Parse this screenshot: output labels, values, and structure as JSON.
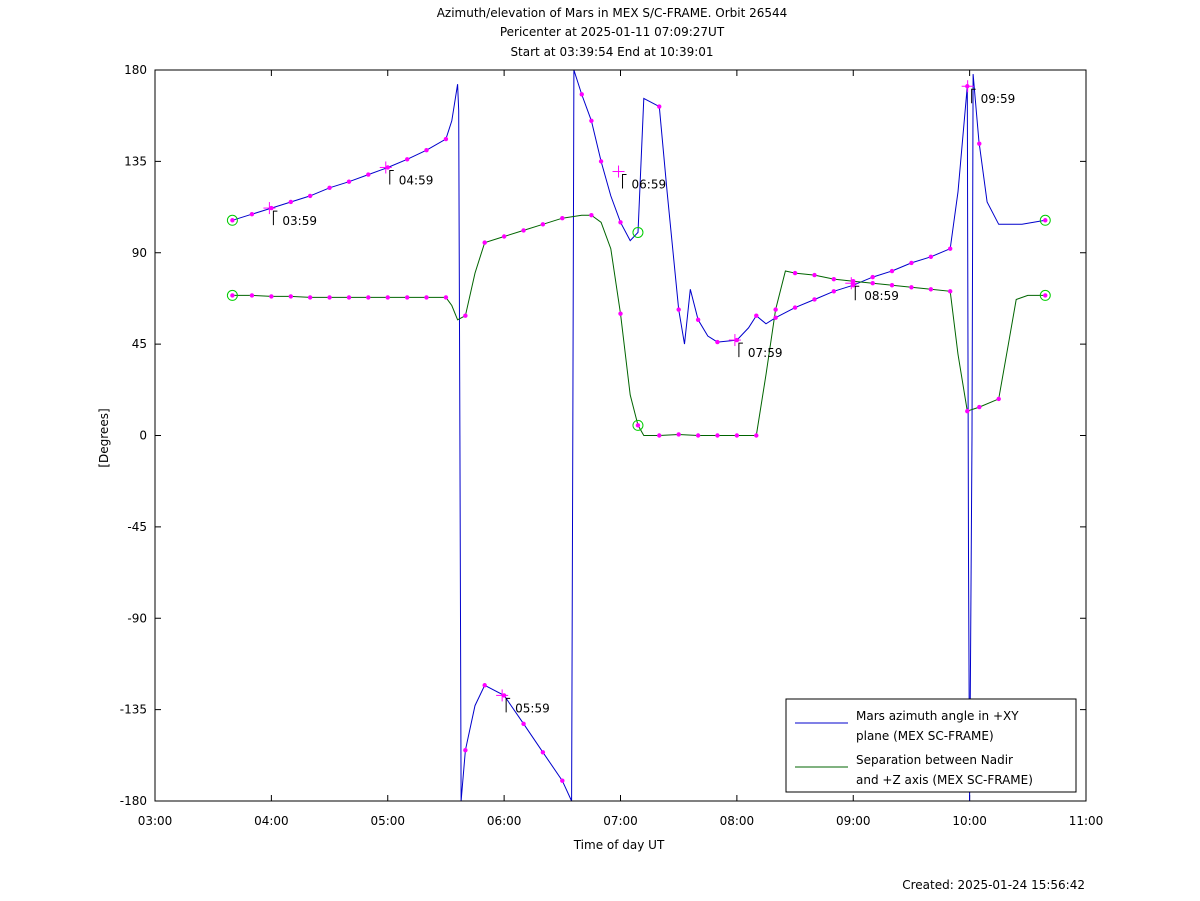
{
  "chart_data": {
    "type": "line",
    "title": "Azimuth/elevation of Mars in MEX S/C-FRAME.  Orbit 26544",
    "subtitle_1": "Pericenter at 2025-01-11 07:09:27UT",
    "subtitle_2": "Start at 03:39:54 End at 10:39:01",
    "xlabel": "Time of day UT",
    "ylabel": "[Degrees]",
    "xlim": [
      3.0,
      11.0
    ],
    "ylim": [
      -180,
      180
    ],
    "x_ticks": [
      3,
      4,
      5,
      6,
      7,
      8,
      9,
      10,
      11
    ],
    "x_tick_labels": [
      "03:00",
      "04:00",
      "05:00",
      "06:00",
      "07:00",
      "08:00",
      "09:00",
      "10:00",
      "11:00"
    ],
    "y_ticks": [
      180,
      135,
      90,
      45,
      0,
      -45,
      -90,
      -135,
      -180
    ],
    "y_tick_labels": [
      "180",
      "135",
      "90",
      "45",
      "0",
      "-45",
      "-90",
      "-135",
      "-180"
    ],
    "grid": false,
    "legend_position": "bottom-right",
    "colors": {
      "azimuth": "#0000cc",
      "separation": "#006400",
      "markers": "#ff00ff",
      "endpoints": "#00cc00"
    },
    "series": [
      {
        "name": "Mars azimuth angle in +XY plane (MEX SC-FRAME)",
        "legend_line_1": "Mars azimuth angle in +XY",
        "legend_line_2": "plane (MEX SC-FRAME)",
        "points": [
          [
            3.665,
            106
          ],
          [
            3.833,
            109
          ],
          [
            4.0,
            112
          ],
          [
            4.167,
            115
          ],
          [
            4.333,
            118
          ],
          [
            4.5,
            122
          ],
          [
            4.667,
            125
          ],
          [
            4.833,
            128.5
          ],
          [
            5.0,
            132
          ],
          [
            5.167,
            136
          ],
          [
            5.333,
            140.5
          ],
          [
            5.5,
            146
          ],
          [
            5.55,
            155
          ],
          [
            5.6,
            173
          ],
          [
            5.61,
            160
          ],
          [
            5.62,
            0
          ],
          [
            5.63,
            -180
          ],
          [
            5.667,
            -155
          ],
          [
            5.75,
            -133
          ],
          [
            5.833,
            -123
          ],
          [
            6.0,
            -128
          ],
          [
            6.167,
            -142
          ],
          [
            6.333,
            -156
          ],
          [
            6.5,
            -170
          ],
          [
            6.58,
            -180
          ],
          [
            6.59,
            0
          ],
          [
            6.6,
            180
          ],
          [
            6.667,
            168
          ],
          [
            6.75,
            155
          ],
          [
            6.833,
            135
          ],
          [
            6.917,
            118
          ],
          [
            7.0,
            105
          ],
          [
            7.083,
            96
          ],
          [
            7.15,
            100
          ],
          [
            7.2,
            166
          ],
          [
            7.333,
            162
          ],
          [
            7.4,
            120
          ],
          [
            7.5,
            62
          ],
          [
            7.55,
            45
          ],
          [
            7.6,
            72
          ],
          [
            7.667,
            57
          ],
          [
            7.75,
            49
          ],
          [
            7.833,
            46
          ],
          [
            8.0,
            47
          ],
          [
            8.1,
            53
          ],
          [
            8.167,
            59
          ],
          [
            8.25,
            55
          ],
          [
            8.333,
            58
          ],
          [
            8.5,
            63
          ],
          [
            8.667,
            67
          ],
          [
            8.833,
            71
          ],
          [
            9.0,
            74
          ],
          [
            9.167,
            78
          ],
          [
            9.333,
            81
          ],
          [
            9.5,
            85
          ],
          [
            9.667,
            88
          ],
          [
            9.833,
            92
          ],
          [
            9.9,
            120
          ],
          [
            9.98,
            172
          ],
          [
            9.99,
            -60
          ],
          [
            10.0,
            -180
          ],
          [
            10.02,
            0
          ],
          [
            10.03,
            178
          ],
          [
            10.08,
            145
          ],
          [
            10.15,
            115
          ],
          [
            10.25,
            104
          ],
          [
            10.333,
            104
          ],
          [
            10.45,
            104
          ],
          [
            10.65,
            106
          ]
        ],
        "marker_x": [
          3.665,
          3.833,
          4.0,
          4.167,
          4.333,
          4.5,
          4.667,
          4.833,
          5.0,
          5.167,
          5.333,
          5.5,
          5.667,
          5.833,
          6.0,
          6.167,
          6.333,
          6.5,
          6.667,
          6.75,
          6.833,
          7.0,
          7.333,
          7.5,
          7.667,
          7.833,
          8.0,
          8.167,
          8.333,
          8.5,
          8.667,
          8.833,
          9.0,
          9.167,
          9.333,
          9.5,
          9.667,
          9.833,
          9.98,
          10.083,
          10.65
        ]
      },
      {
        "name": "Separation between Nadir and +Z axis (MEX SC-FRAME)",
        "legend_line_1": "Separation between Nadir",
        "legend_line_2": "and +Z axis (MEX SC-FRAME)",
        "points": [
          [
            3.665,
            69
          ],
          [
            3.833,
            69
          ],
          [
            4.0,
            68.5
          ],
          [
            4.167,
            68.5
          ],
          [
            4.333,
            68
          ],
          [
            4.5,
            68
          ],
          [
            4.667,
            68
          ],
          [
            4.833,
            68
          ],
          [
            5.0,
            68
          ],
          [
            5.167,
            68
          ],
          [
            5.333,
            68
          ],
          [
            5.5,
            68
          ],
          [
            5.55,
            64
          ],
          [
            5.6,
            57
          ],
          [
            5.667,
            59
          ],
          [
            5.75,
            80
          ],
          [
            5.833,
            95
          ],
          [
            6.0,
            98
          ],
          [
            6.167,
            101
          ],
          [
            6.333,
            104
          ],
          [
            6.5,
            107
          ],
          [
            6.667,
            108.5
          ],
          [
            6.75,
            108.5
          ],
          [
            6.833,
            105
          ],
          [
            6.917,
            92
          ],
          [
            7.0,
            60
          ],
          [
            7.083,
            20
          ],
          [
            7.15,
            5
          ],
          [
            7.2,
            0
          ],
          [
            7.333,
            0
          ],
          [
            7.5,
            0.5
          ],
          [
            7.667,
            0
          ],
          [
            7.833,
            0
          ],
          [
            8.0,
            0
          ],
          [
            8.167,
            0
          ],
          [
            8.25,
            30
          ],
          [
            8.333,
            62
          ],
          [
            8.417,
            81
          ],
          [
            8.5,
            80
          ],
          [
            8.667,
            79
          ],
          [
            8.833,
            77
          ],
          [
            9.0,
            76
          ],
          [
            9.167,
            75
          ],
          [
            9.333,
            74
          ],
          [
            9.5,
            73
          ],
          [
            9.667,
            72
          ],
          [
            9.833,
            71
          ],
          [
            9.9,
            40
          ],
          [
            9.98,
            12
          ],
          [
            10.083,
            14
          ],
          [
            10.25,
            18
          ],
          [
            10.333,
            45
          ],
          [
            10.4,
            67
          ],
          [
            10.5,
            69
          ],
          [
            10.65,
            69
          ]
        ],
        "marker_x": [
          3.665,
          3.833,
          4.0,
          4.167,
          4.333,
          4.5,
          4.667,
          4.833,
          5.0,
          5.167,
          5.333,
          5.5,
          5.667,
          5.833,
          6.0,
          6.167,
          6.333,
          6.5,
          6.75,
          7.0,
          7.15,
          7.333,
          7.5,
          7.667,
          7.833,
          8.0,
          8.167,
          8.333,
          8.5,
          8.667,
          8.833,
          9.0,
          9.167,
          9.333,
          9.5,
          9.667,
          9.833,
          9.98,
          10.083,
          10.25,
          10.65
        ]
      }
    ],
    "hour_annotations": [
      {
        "label": "03:59",
        "x": 3.983,
        "y": 112
      },
      {
        "label": "04:59",
        "x": 4.983,
        "y": 132
      },
      {
        "label": "05:59",
        "x": 5.983,
        "y": -128
      },
      {
        "label": "06:59",
        "x": 6.983,
        "y": 130
      },
      {
        "label": "07:59",
        "x": 7.983,
        "y": 47
      },
      {
        "label": "08:59",
        "x": 8.983,
        "y": 75
      },
      {
        "label": "09:59",
        "x": 9.983,
        "y": 172
      }
    ],
    "endpoint_markers": [
      {
        "x": 3.665,
        "y": 106
      },
      {
        "x": 3.665,
        "y": 69
      },
      {
        "x": 10.65,
        "y": 106
      },
      {
        "x": 10.65,
        "y": 69
      },
      {
        "x": 7.15,
        "y": 100
      },
      {
        "x": 7.15,
        "y": 5
      }
    ]
  },
  "footer": {
    "created": "Created: 2025-01-24 15:56:42"
  }
}
